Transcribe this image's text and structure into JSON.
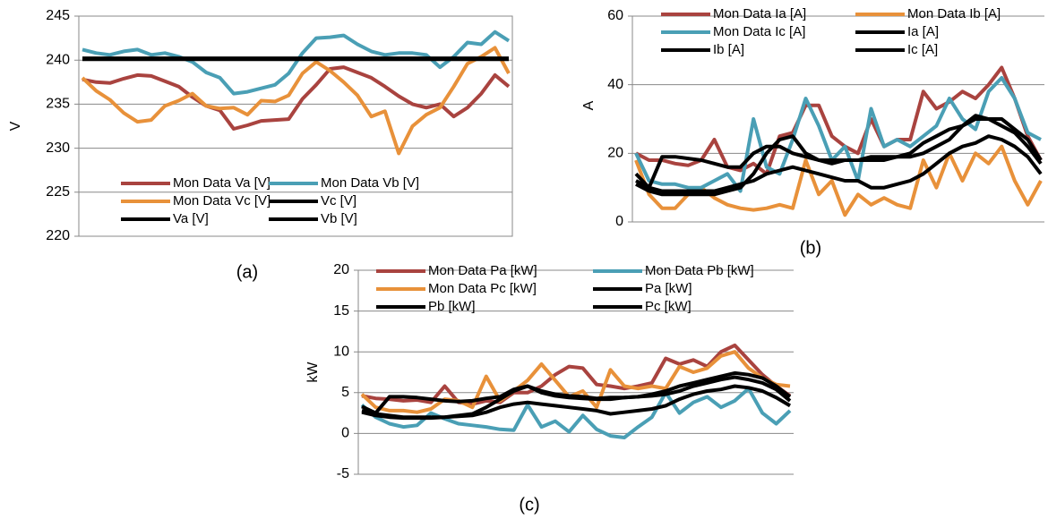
{
  "chart_data": [
    {
      "type": "line",
      "label": "(a)",
      "y_label": "V",
      "ylim": [
        220,
        245
      ],
      "yticks": [
        220,
        225,
        230,
        235,
        240,
        245
      ],
      "grid": true,
      "legend": "bottom",
      "series": [
        {
          "name": "Mon Data Va [V]",
          "color": "#a9433f",
          "values": [
            237.8,
            237.5,
            237.4,
            237.9,
            238.3,
            238.2,
            237.6,
            237.0,
            235.8,
            234.8,
            234.3,
            232.2,
            232.6,
            233.1,
            233.2,
            233.3,
            235.6,
            237.2,
            239.0,
            239.2,
            238.6,
            238.0,
            237.0,
            235.9,
            235.0,
            234.6,
            235.0,
            233.6,
            234.6,
            236.2,
            238.3,
            237.0
          ]
        },
        {
          "name": "Mon Data Vb [V]",
          "color": "#4a9fb5",
          "values": [
            241.2,
            240.8,
            240.6,
            241.0,
            241.2,
            240.6,
            240.8,
            240.4,
            239.8,
            238.6,
            238.0,
            236.2,
            236.4,
            236.8,
            237.2,
            238.5,
            240.8,
            242.5,
            242.6,
            242.8,
            241.8,
            241.0,
            240.6,
            240.8,
            240.8,
            240.6,
            239.2,
            240.4,
            242.0,
            241.8,
            243.2,
            242.2
          ]
        },
        {
          "name": "Mon Data Vc [V]",
          "color": "#e8913a",
          "values": [
            238.0,
            236.5,
            235.5,
            234.0,
            233.0,
            233.2,
            234.8,
            235.4,
            236.2,
            234.8,
            234.5,
            234.6,
            233.8,
            235.4,
            235.3,
            236.0,
            238.5,
            239.8,
            238.8,
            237.5,
            236.0,
            233.6,
            234.2,
            229.4,
            232.5,
            233.8,
            234.6,
            237.0,
            239.6,
            240.4,
            241.4,
            238.5
          ]
        },
        {
          "name": "Vc [V]",
          "color": "#000000",
          "values": [
            240.2,
            240.2,
            240.2,
            240.2,
            240.2,
            240.2,
            240.2,
            240.2,
            240.2,
            240.2,
            240.2,
            240.2,
            240.2,
            240.2,
            240.2,
            240.2,
            240.2,
            240.2,
            240.2,
            240.2,
            240.2,
            240.2,
            240.2,
            240.2,
            240.2,
            240.2,
            240.2,
            240.2,
            240.2,
            240.2,
            240.2,
            240.2
          ]
        },
        {
          "name": "Va [V]",
          "color": "#000000",
          "values": [
            240.1,
            240.1,
            240.1,
            240.1,
            240.1,
            240.1,
            240.1,
            240.1,
            240.1,
            240.1,
            240.1,
            240.1,
            240.1,
            240.1,
            240.1,
            240.1,
            240.1,
            240.1,
            240.1,
            240.1,
            240.1,
            240.1,
            240.1,
            240.1,
            240.1,
            240.1,
            240.1,
            240.1,
            240.1,
            240.1,
            240.1,
            240.1
          ]
        },
        {
          "name": "Vb [V]",
          "color": "#000000",
          "values": [
            240.2,
            240.2,
            240.2,
            240.2,
            240.2,
            240.2,
            240.2,
            240.2,
            240.2,
            240.2,
            240.2,
            240.2,
            240.2,
            240.2,
            240.2,
            240.2,
            240.2,
            240.2,
            240.2,
            240.2,
            240.2,
            240.2,
            240.2,
            240.2,
            240.2,
            240.2,
            240.2,
            240.2,
            240.2,
            240.2,
            240.2,
            240.2
          ]
        }
      ]
    },
    {
      "type": "line",
      "label": "(b)",
      "y_label": "A",
      "ylim": [
        0,
        60
      ],
      "yticks": [
        0,
        20,
        40,
        60
      ],
      "grid": true,
      "legend": "top",
      "series": [
        {
          "name": "Mon Data Ia [A]",
          "color": "#a9433f",
          "values": [
            20,
            18,
            18,
            17,
            16.5,
            18,
            24,
            16,
            15,
            17,
            14,
            25,
            26,
            34,
            34,
            25,
            22,
            20,
            30,
            22,
            24,
            24,
            38,
            33,
            35,
            38,
            36,
            40,
            45,
            36,
            25,
            18
          ]
        },
        {
          "name": "Mon Data Ib [A]",
          "color": "#e8913a",
          "values": [
            18,
            8,
            4,
            4,
            8,
            10,
            7,
            5,
            4,
            3.5,
            4,
            5,
            4,
            18,
            8,
            12,
            2,
            8,
            5,
            7,
            5,
            4,
            18,
            10,
            20,
            12,
            20,
            17,
            22,
            12,
            5,
            12
          ]
        },
        {
          "name": "Mon Data Ic [A]",
          "color": "#4a9fb5",
          "values": [
            20,
            12,
            11,
            11,
            10,
            10,
            12,
            14,
            9,
            30,
            16,
            14,
            24,
            36,
            28,
            18,
            22,
            12,
            33,
            22,
            24,
            22,
            25,
            28,
            36,
            30,
            27,
            38,
            42,
            36,
            26,
            24
          ]
        },
        {
          "name": "Ia [A]",
          "color": "#000000",
          "values": [
            14,
            10,
            19,
            19,
            18.5,
            18,
            17,
            16,
            16,
            20,
            22,
            22,
            20,
            19,
            18,
            18,
            18,
            18,
            18,
            18,
            19,
            20,
            23,
            25,
            27,
            28,
            30,
            30,
            28,
            26,
            22,
            17
          ]
        },
        {
          "name": "Ib [A]",
          "color": "#000000",
          "values": [
            11,
            9,
            8,
            8,
            8,
            8,
            8,
            9,
            10,
            14,
            20,
            24,
            25,
            20,
            18,
            17,
            18,
            18,
            19,
            19,
            19,
            19,
            20,
            22,
            24,
            28,
            31,
            30,
            30,
            27,
            24,
            18
          ]
        },
        {
          "name": "Ic [A]",
          "color": "#000000",
          "values": [
            12,
            10,
            9,
            9,
            9,
            9,
            9,
            10,
            11,
            12,
            14,
            15,
            16,
            15,
            14,
            13,
            12,
            12,
            10,
            10,
            11,
            12,
            14,
            17,
            20,
            22,
            23,
            25,
            24,
            22,
            19,
            14
          ]
        }
      ]
    },
    {
      "type": "line",
      "label": "(c)",
      "y_label": "kW",
      "ylim": [
        -5,
        20
      ],
      "yticks": [
        -5,
        0,
        5,
        10,
        15,
        20
      ],
      "grid": true,
      "legend": "top",
      "series": [
        {
          "name": "Mon Data Pa [kW]",
          "color": "#a9433f",
          "values": [
            4.6,
            4.3,
            4.2,
            4.0,
            4.1,
            3.8,
            5.8,
            3.8,
            3.6,
            4.0,
            3.8,
            5.0,
            5.0,
            5.8,
            7.2,
            8.2,
            8.0,
            6.0,
            5.8,
            5.5,
            5.8,
            6.2,
            9.2,
            8.5,
            9.0,
            8.2,
            10.0,
            10.8,
            9.0,
            7.2,
            5.8,
            4.6
          ]
        },
        {
          "name": "Mon Data Pb [kW]",
          "color": "#4a9fb5",
          "values": [
            3.5,
            2.0,
            1.2,
            0.8,
            1.0,
            2.5,
            1.8,
            1.2,
            1.0,
            0.8,
            0.5,
            0.4,
            3.5,
            0.8,
            1.5,
            0.2,
            2.2,
            0.5,
            -0.3,
            -0.5,
            0.8,
            2.0,
            5.0,
            2.5,
            3.8,
            4.5,
            3.2,
            4.0,
            5.5,
            2.5,
            1.2,
            2.8
          ]
        },
        {
          "name": "Mon Data Pc [kW]",
          "color": "#e8913a",
          "values": [
            4.8,
            3.2,
            2.8,
            2.8,
            2.6,
            3.0,
            4.2,
            4.0,
            3.2,
            7.0,
            4.0,
            5.2,
            6.5,
            8.5,
            6.5,
            4.5,
            5.2,
            3.2,
            7.8,
            5.8,
            5.5,
            5.8,
            5.5,
            8.2,
            7.5,
            8.0,
            9.5,
            10.0,
            8.0,
            6.8,
            6.0,
            5.8
          ]
        },
        {
          "name": "Pa [kW]",
          "color": "#000000",
          "values": [
            3.3,
            2.5,
            4.5,
            4.5,
            4.4,
            4.2,
            4.0,
            3.9,
            4.0,
            4.3,
            4.5,
            5.4,
            5.8,
            5.2,
            4.8,
            4.6,
            4.5,
            4.3,
            4.4,
            4.4,
            4.5,
            4.6,
            4.8,
            5.2,
            5.8,
            6.2,
            6.6,
            6.9,
            6.6,
            6.2,
            5.4,
            4.0
          ]
        },
        {
          "name": "Pb [kW]",
          "color": "#000000",
          "values": [
            2.6,
            2.2,
            2.0,
            1.9,
            1.9,
            1.9,
            2.0,
            2.2,
            2.4,
            3.2,
            4.2,
            5.2,
            5.8,
            5.0,
            4.6,
            4.4,
            4.3,
            4.2,
            4.2,
            4.4,
            4.5,
            4.8,
            5.2,
            5.8,
            6.2,
            6.6,
            7.0,
            7.4,
            7.2,
            6.8,
            5.8,
            4.5
          ]
        },
        {
          "name": "Pc [kW]",
          "color": "#000000",
          "values": [
            2.8,
            2.4,
            2.2,
            2.0,
            2.0,
            2.0,
            2.0,
            2.1,
            2.2,
            2.6,
            3.2,
            3.6,
            3.8,
            3.6,
            3.4,
            3.2,
            3.0,
            2.8,
            2.4,
            2.6,
            2.8,
            3.0,
            3.4,
            4.2,
            4.8,
            5.2,
            5.4,
            5.8,
            5.6,
            5.2,
            4.4,
            3.4
          ]
        }
      ]
    }
  ]
}
